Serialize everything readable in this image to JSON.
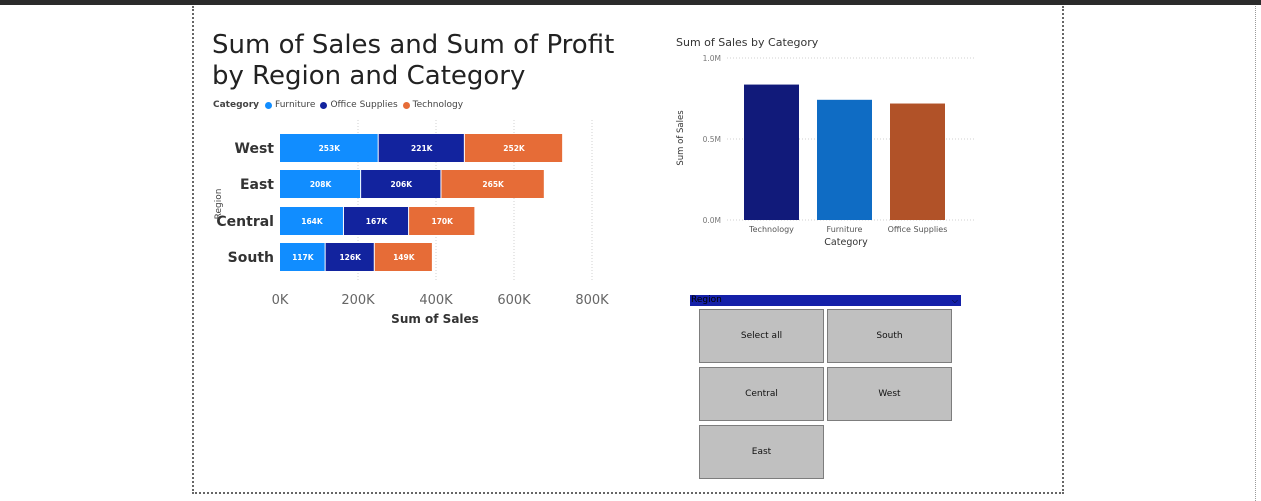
{
  "report": {
    "main_title": "Sum of Sales and Sum of Profit by Region and Category",
    "legend_title": "Category",
    "side_title": "Sum of Sales by Category"
  },
  "colors": {
    "furniture": "#118dff",
    "office_supplies": "#12239e",
    "technology": "#e66c37",
    "technology_col": "#111a7a",
    "furniture_col": "#0f6cc4",
    "office_supplies_col": "#b15228",
    "slicer_header": "#1420a8",
    "slicer_button": "#c0c0c0"
  },
  "chart_data": [
    {
      "type": "bar",
      "orientation": "horizontal",
      "stacked": true,
      "title": "Sum of Sales and Sum of Profit by Region and Category",
      "categories": [
        "West",
        "East",
        "Central",
        "South"
      ],
      "series": [
        {
          "name": "Furniture",
          "values": [
            253,
            208,
            164,
            117
          ],
          "labels": [
            "253K",
            "208K",
            "164K",
            "117K"
          ]
        },
        {
          "name": "Office Supplies",
          "values": [
            221,
            206,
            167,
            126
          ],
          "labels": [
            "221K",
            "206K",
            "167K",
            "126K"
          ]
        },
        {
          "name": "Technology",
          "values": [
            252,
            265,
            170,
            149
          ],
          "labels": [
            "252K",
            "265K",
            "170K",
            "149K"
          ]
        }
      ],
      "xlabel": "Sum of Sales",
      "ylabel": "Region",
      "xlim": [
        0,
        800
      ],
      "xticks": [
        "0K",
        "200K",
        "400K",
        "600K",
        "800K"
      ],
      "grid": true,
      "legend": "top-left"
    },
    {
      "type": "bar",
      "title": "Sum of Sales by Category",
      "categories": [
        "Technology",
        "Furniture",
        "Office Supplies"
      ],
      "values": [
        0.836,
        0.742,
        0.719
      ],
      "xlabel": "Category",
      "ylabel": "Sum of Sales",
      "ylim": [
        0,
        1.0
      ],
      "yticks": [
        "0.0M",
        "0.5M",
        "1.0M"
      ],
      "grid": true
    }
  ],
  "slicer": {
    "header": "Region",
    "chevron": "⌵",
    "buttons": [
      "Select all",
      "South",
      "Central",
      "West",
      "East"
    ]
  }
}
